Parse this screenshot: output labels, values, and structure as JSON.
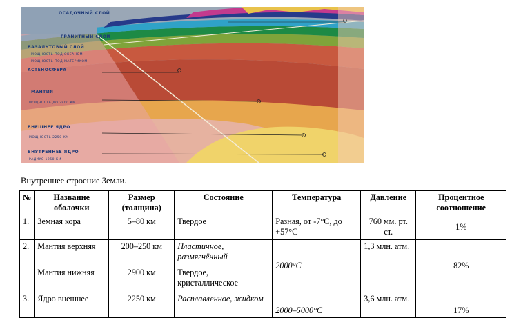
{
  "figure": {
    "labels": [
      "ОСАДОЧНЫЙ СЛОЙ",
      "ГРАНИТНЫЙ СЛОЙ",
      "БАЗАЛЬТОВЫЙ СЛОЙ",
      "АСТЕНОСФЕРА",
      "МАНТИЯ",
      "ВНЕШНЕЕ ЯДРО",
      "ВНУТРЕННЕЕ ЯДРО"
    ],
    "sublabels": [
      "МОЩНОСТЬ ПОД ОКЕАНОМ",
      "МОЩНОСТЬ ПОД МАТЕРИКОМ",
      "МОЩНОСТЬ ДО 2900 КМ",
      "МОЩНОСТЬ 2250 КМ",
      "РАДИУС 1250 КМ"
    ]
  },
  "caption": "Внутреннее строение Земли.",
  "table": {
    "headers": {
      "num": "№",
      "name": "Название оболочки",
      "size": "Размер (толщина)",
      "state": "Состояние",
      "temp": "Температура",
      "pressure": "Давление",
      "percent": "Процентное соотношение"
    },
    "rows": [
      {
        "num": "1.",
        "name": "Земная кора",
        "size": "5–80 км",
        "state": "Твердое",
        "temp": "Разная, от -7°С, до +57°С",
        "pressure": "760 мм. рт. ст.",
        "percent": "1%"
      },
      {
        "num": "2.",
        "name": "Мантия верхняя",
        "size": "200–250 км",
        "state": "Пластичное, размягчённый",
        "temp": "2000°С",
        "pressure": "1,3 млн. атм.",
        "percent": "82%"
      },
      {
        "num": "",
        "name": "Мантия нижняя",
        "size": "2900 км",
        "state": "Твердое, кристаллическое"
      },
      {
        "num": "3.",
        "name": "Ядро внешнее",
        "size": "2250 км",
        "state": "Расплавленное, жидком",
        "temp": "2000–5000°С",
        "pressure": "3,6 млн. атм.",
        "percent": "17%"
      }
    ]
  }
}
